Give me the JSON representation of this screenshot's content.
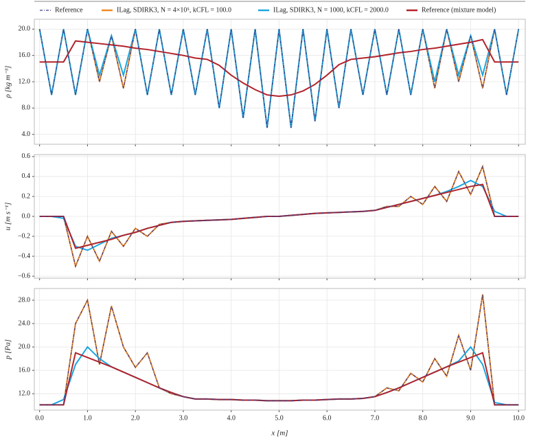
{
  "chart_data": [
    {
      "type": "line",
      "ylabel": "ρ [kg m⁻³]",
      "grid": true,
      "x": [
        0,
        0.25,
        0.5,
        0.75,
        1,
        1.25,
        1.5,
        1.75,
        2,
        2.25,
        2.5,
        2.75,
        3,
        3.25,
        3.5,
        3.75,
        4,
        4.25,
        4.5,
        4.75,
        5,
        5.25,
        5.5,
        5.75,
        6,
        6.25,
        6.5,
        6.75,
        7,
        7.25,
        7.5,
        7.75,
        8,
        8.25,
        8.5,
        8.75,
        9,
        9.25,
        9.5,
        9.75,
        10
      ],
      "xlim": [
        -0.11,
        10.14
      ],
      "xticks": [
        0,
        1,
        2,
        3,
        4,
        5,
        6,
        7,
        8,
        9,
        10
      ],
      "ylim": [
        2.5,
        21.5
      ],
      "yticks": [
        {
          "value": 4,
          "label": "4.0"
        },
        {
          "value": 8,
          "label": "8.0"
        },
        {
          "value": 12,
          "label": "12.0"
        },
        {
          "value": 16,
          "label": "16.0"
        },
        {
          "value": 20,
          "label": "20.0"
        }
      ],
      "series": [
        {
          "name": "Reference",
          "color": "#3a3a8c",
          "dash": "dashdot",
          "values": [
            20,
            10,
            20,
            10,
            20,
            12,
            19,
            11,
            20,
            10,
            20,
            10,
            20,
            10,
            20,
            8,
            20,
            6.5,
            20,
            5,
            20,
            5,
            20,
            6,
            20,
            8,
            20,
            10,
            20,
            10,
            20,
            10,
            20,
            11,
            20,
            12,
            19,
            11,
            20,
            10,
            20
          ]
        },
        {
          "name": "ILag, SDIRK3, N = 4×10⁵, kCFL = 100.0",
          "color": "#f08a24",
          "values": [
            20,
            10,
            20,
            10,
            20,
            12,
            19,
            11,
            20,
            10,
            20,
            10,
            20,
            10,
            20,
            8,
            20,
            6.5,
            20,
            5,
            20,
            5,
            20,
            6,
            20,
            8,
            20,
            10,
            20,
            10,
            20,
            10,
            20,
            11,
            20,
            12,
            19,
            11,
            20,
            10,
            20
          ]
        },
        {
          "name": "ILag, SDIRK3, N = 1000, kCFL = 2000.0",
          "color": "#1ba7e0",
          "values": [
            20,
            10,
            20,
            10,
            20,
            13,
            19,
            13,
            20,
            10,
            20,
            10,
            20,
            10,
            20,
            8,
            20,
            6.5,
            20,
            5,
            20,
            5,
            20,
            6,
            20,
            8,
            20,
            10,
            20,
            10,
            20,
            10,
            20,
            12,
            20,
            13,
            19,
            13,
            20,
            10,
            20
          ]
        },
        {
          "name": "Reference (mixture model)",
          "color": "#b2222a",
          "values": [
            15,
            15,
            15,
            18.2,
            18,
            17.8,
            17.6,
            17.4,
            17.1,
            16.9,
            16.6,
            16.3,
            16,
            15.6,
            15.4,
            14.5,
            13,
            11.8,
            10.8,
            10,
            9.8,
            10,
            10.6,
            11.6,
            13,
            14.6,
            15.4,
            15.6,
            15.8,
            16.1,
            16.4,
            16.6,
            16.9,
            17.1,
            17.4,
            17.7,
            18,
            18.4,
            15,
            15,
            15
          ]
        }
      ]
    },
    {
      "type": "line",
      "ylabel": "u [m s⁻¹]",
      "grid": true,
      "x": [
        0,
        0.25,
        0.5,
        0.75,
        1,
        1.25,
        1.5,
        1.75,
        2,
        2.25,
        2.5,
        2.75,
        3,
        3.25,
        3.5,
        3.75,
        4,
        4.25,
        4.5,
        4.75,
        5,
        5.25,
        5.5,
        5.75,
        6,
        6.25,
        6.5,
        6.75,
        7,
        7.25,
        7.5,
        7.75,
        8,
        8.25,
        8.5,
        8.75,
        9,
        9.25,
        9.5,
        9.75,
        10
      ],
      "xlim": [
        -0.11,
        10.14
      ],
      "xticks": [
        0,
        1,
        2,
        3,
        4,
        5,
        6,
        7,
        8,
        9,
        10
      ],
      "ylim": [
        -0.62,
        0.62
      ],
      "yticks": [
        {
          "value": -0.6,
          "label": "−0.6"
        },
        {
          "value": -0.4,
          "label": "−0.4"
        },
        {
          "value": -0.2,
          "label": "−0.2"
        },
        {
          "value": 0,
          "label": "0.0"
        },
        0.2,
        0.4,
        0.6
      ],
      "series": [
        {
          "color": "#3a3a8c",
          "dash": "dashdot",
          "values": [
            0,
            0,
            0,
            -0.5,
            -0.2,
            -0.45,
            -0.15,
            -0.3,
            -0.12,
            -0.2,
            -0.08,
            -0.06,
            -0.05,
            -0.045,
            -0.04,
            -0.035,
            -0.03,
            -0.02,
            -0.01,
            0,
            0,
            0.01,
            0.02,
            0.03,
            0.035,
            0.04,
            0.045,
            0.05,
            0.06,
            0.1,
            0.1,
            0.2,
            0.12,
            0.3,
            0.15,
            0.45,
            0.22,
            0.5,
            0,
            0,
            0
          ]
        },
        {
          "color": "#f08a24",
          "values": [
            0,
            0,
            0,
            -0.5,
            -0.2,
            -0.45,
            -0.15,
            -0.3,
            -0.12,
            -0.2,
            -0.08,
            -0.06,
            -0.05,
            -0.045,
            -0.04,
            -0.035,
            -0.03,
            -0.02,
            -0.01,
            0,
            0,
            0.01,
            0.02,
            0.03,
            0.035,
            0.04,
            0.045,
            0.05,
            0.06,
            0.1,
            0.1,
            0.2,
            0.12,
            0.3,
            0.15,
            0.45,
            0.22,
            0.5,
            0,
            0,
            0
          ]
        },
        {
          "color": "#1ba7e0",
          "values": [
            0,
            0,
            -0.02,
            -0.3,
            -0.34,
            -0.28,
            -0.22,
            -0.19,
            -0.16,
            -0.12,
            -0.09,
            -0.06,
            -0.05,
            -0.045,
            -0.04,
            -0.035,
            -0.03,
            -0.02,
            -0.01,
            0,
            0,
            0.01,
            0.02,
            0.03,
            0.035,
            0.04,
            0.045,
            0.05,
            0.06,
            0.09,
            0.12,
            0.15,
            0.18,
            0.21,
            0.25,
            0.3,
            0.36,
            0.3,
            0.05,
            0,
            0
          ]
        },
        {
          "color": "#b2222a",
          "values": [
            0,
            0,
            0,
            -0.32,
            -0.29,
            -0.26,
            -0.23,
            -0.19,
            -0.16,
            -0.12,
            -0.09,
            -0.06,
            -0.05,
            -0.045,
            -0.04,
            -0.035,
            -0.03,
            -0.02,
            -0.01,
            0,
            0,
            0.01,
            0.02,
            0.03,
            0.035,
            0.04,
            0.045,
            0.05,
            0.06,
            0.09,
            0.12,
            0.15,
            0.18,
            0.21,
            0.24,
            0.27,
            0.3,
            0.32,
            0,
            0,
            0
          ]
        }
      ]
    },
    {
      "type": "line",
      "ylabel": "p [Pa]",
      "xlabel": "x [m]",
      "grid": true,
      "x": [
        0,
        0.25,
        0.5,
        0.75,
        1,
        1.25,
        1.5,
        1.75,
        2,
        2.25,
        2.5,
        2.75,
        3,
        3.25,
        3.5,
        3.75,
        4,
        4.25,
        4.5,
        4.75,
        5,
        5.25,
        5.5,
        5.75,
        6,
        6.25,
        6.5,
        6.75,
        7,
        7.25,
        7.5,
        7.75,
        8,
        8.25,
        8.5,
        8.75,
        9,
        9.25,
        9.5,
        9.75,
        10
      ],
      "xlim": [
        -0.11,
        10.14
      ],
      "xticks": [
        {
          "value": 0,
          "label": "0.0"
        },
        {
          "value": 1,
          "label": "1.0"
        },
        {
          "value": 2,
          "label": "2.0"
        },
        {
          "value": 3,
          "label": "3.0"
        },
        {
          "value": 4,
          "label": "4.0"
        },
        {
          "value": 5,
          "label": "5.0"
        },
        {
          "value": 6,
          "label": "6.0"
        },
        {
          "value": 7,
          "label": "7.0"
        },
        {
          "value": 8,
          "label": "8.0"
        },
        {
          "value": 9,
          "label": "9.0"
        },
        {
          "value": 10,
          "label": "10.0"
        }
      ],
      "ylim": [
        9.2,
        30
      ],
      "yticks": [
        {
          "value": 12,
          "label": "12.0"
        },
        {
          "value": 16,
          "label": "16.0"
        },
        {
          "value": 20,
          "label": "20.0"
        },
        {
          "value": 24,
          "label": "24.0"
        },
        {
          "value": 28,
          "label": "28.0"
        }
      ],
      "series": [
        {
          "color": "#3a3a8c",
          "dash": "dashdot",
          "values": [
            10.1,
            10.1,
            10.1,
            24,
            28,
            17,
            27,
            20,
            16.5,
            19,
            13,
            12,
            11.5,
            11.1,
            11.1,
            11,
            11,
            10.9,
            10.9,
            10.8,
            10.8,
            10.8,
            10.9,
            10.9,
            11,
            11.1,
            11.1,
            11.2,
            11.5,
            13,
            12.5,
            15.5,
            14,
            18,
            15,
            22,
            16,
            29,
            10.1,
            10.1,
            10.1
          ]
        },
        {
          "color": "#f08a24",
          "values": [
            10.1,
            10.1,
            10.1,
            24,
            28,
            17,
            27,
            20,
            16.5,
            19,
            13,
            12,
            11.5,
            11.1,
            11.1,
            11,
            11,
            10.9,
            10.9,
            10.8,
            10.8,
            10.8,
            10.9,
            10.9,
            11,
            11.1,
            11.1,
            11.2,
            11.5,
            13,
            12.5,
            15.5,
            14,
            18,
            15,
            22,
            16,
            29,
            10.1,
            10.1,
            10.1
          ]
        },
        {
          "color": "#1ba7e0",
          "values": [
            10.1,
            10.1,
            11,
            17,
            20,
            18,
            16.6,
            15.7,
            14.8,
            13.9,
            13,
            12.2,
            11.5,
            11.1,
            11.1,
            11,
            11,
            10.9,
            10.9,
            10.8,
            10.8,
            10.8,
            10.9,
            10.9,
            11,
            11.1,
            11.1,
            11.2,
            11.5,
            12.2,
            13,
            13.9,
            14.8,
            15.7,
            16.6,
            17.6,
            20,
            17,
            10.5,
            10.1,
            10.1
          ]
        },
        {
          "color": "#b2222a",
          "values": [
            10.1,
            10.1,
            10.1,
            19,
            18.2,
            17.4,
            16.6,
            15.7,
            14.8,
            13.9,
            13,
            12.2,
            11.5,
            11.1,
            11.1,
            11,
            11,
            10.9,
            10.9,
            10.8,
            10.8,
            10.8,
            10.9,
            10.9,
            11,
            11.1,
            11.1,
            11.2,
            11.5,
            12.2,
            13,
            13.9,
            14.8,
            15.7,
            16.6,
            17.4,
            18.2,
            19,
            10.1,
            10.1,
            10.1
          ]
        }
      ]
    }
  ]
}
